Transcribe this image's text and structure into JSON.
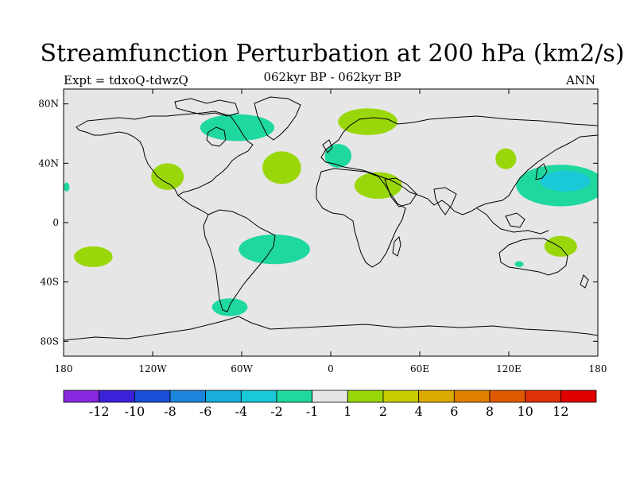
{
  "title": "Streamfunction Perturbation at 200 hPa (km2/s)",
  "left_subtitle": "Expt = tdxoQ-tdwzQ",
  "center_subtitle": "062kyr BP - 062kyr BP",
  "right_subtitle": "ANN",
  "map": {
    "ocean_color": "#e6e6e6",
    "lat_ticks": [
      "80N",
      "40N",
      "0",
      "40S",
      "80S"
    ],
    "lon_ticks": [
      "180",
      "120W",
      "60W",
      "0",
      "60E",
      "120E",
      "180"
    ],
    "lat_values": [
      80,
      40,
      0,
      -40,
      -80
    ],
    "lon_values": [
      -180,
      -120,
      -60,
      0,
      60,
      120,
      180
    ]
  },
  "anomalies": [
    {
      "lon": -110,
      "lat": 31,
      "rlon": 11,
      "rlat": 9,
      "level": 2
    },
    {
      "lon": -178,
      "lat": 24,
      "rlon": 2,
      "rlat": 3,
      "level": -2
    },
    {
      "lon": -63,
      "lat": 64,
      "rlon": 25,
      "rlat": 9,
      "level": -2
    },
    {
      "lon": -33,
      "lat": 37,
      "rlon": 13,
      "rlat": 11,
      "level": 2
    },
    {
      "lon": 25,
      "lat": 68,
      "rlon": 20,
      "rlat": 9,
      "level": 2
    },
    {
      "lon": 5,
      "lat": 45,
      "rlon": 9,
      "rlat": 8,
      "level": -2
    },
    {
      "lon": 32,
      "lat": 25,
      "rlon": 16,
      "rlat": 9,
      "level": 2
    },
    {
      "lon": 118,
      "lat": 43,
      "rlon": 7,
      "rlat": 7,
      "level": 2
    },
    {
      "lon": 155,
      "lat": 25,
      "rlon": 30,
      "rlat": 14,
      "level": -2
    },
    {
      "lon": 158,
      "lat": 28,
      "rlon": 17,
      "rlat": 7,
      "level": -4
    },
    {
      "lon": 155,
      "lat": -16,
      "rlon": 11,
      "rlat": 7,
      "level": 2
    },
    {
      "lon": 127,
      "lat": -28,
      "rlon": 3,
      "rlat": 2,
      "level": -2
    },
    {
      "lon": -160,
      "lat": -23,
      "rlon": 13,
      "rlat": 7,
      "level": 2
    },
    {
      "lon": -38,
      "lat": -18,
      "rlon": 24,
      "rlat": 10,
      "level": -2
    },
    {
      "lon": -68,
      "lat": -57,
      "rlon": 12,
      "rlat": 6,
      "level": -2
    }
  ],
  "colorbar": {
    "colors": [
      "#8a28e0",
      "#3b22d8",
      "#1a4ed8",
      "#1b86dc",
      "#17aedc",
      "#19c9d8",
      "#1ed8a0",
      "#e6e6e6",
      "#9ad70a",
      "#c8cc00",
      "#dcaa00",
      "#e07e00",
      "#e05a00",
      "#e03008",
      "#e00000"
    ],
    "labels": [
      "-12",
      "-10",
      "-8",
      "-6",
      "-4",
      "-2",
      "-1",
      "1",
      "2",
      "4",
      "6",
      "8",
      "10",
      "12"
    ]
  },
  "level_colors": {
    "-4": "#19c9d8",
    "-2": "#1ed8a0",
    "2": "#9ad70a"
  }
}
